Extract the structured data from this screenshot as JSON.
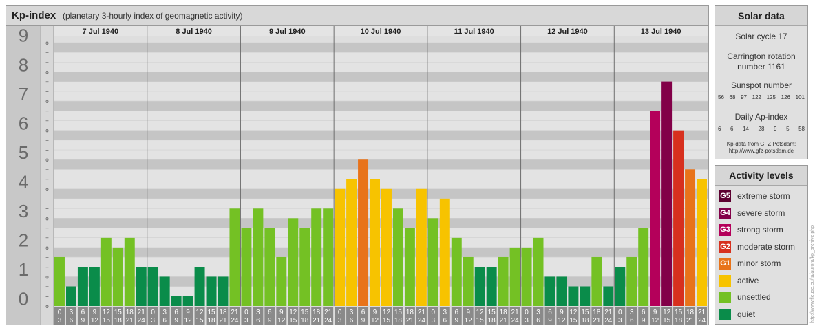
{
  "header": {
    "title": "Kp-index",
    "subtitle": "(planetary 3-hourly index of geomagnetic activity)"
  },
  "chart_data": {
    "type": "bar",
    "title": "Kp-index",
    "subtitle": "(planetary 3-hourly index of geomagnetic activity)",
    "ylim": [
      0,
      9
    ],
    "y_ticks": [
      "0",
      "1",
      "2",
      "3",
      "4",
      "5",
      "6",
      "7",
      "8",
      "9"
    ],
    "y_minor_ticks": [
      "o",
      "+",
      "−"
    ],
    "days": [
      "7 Jul 1940",
      "8 Jul 1940",
      "9 Jul 1940",
      "10 Jul 1940",
      "11 Jul 1940",
      "12 Jul 1940",
      "13 Jul 1940"
    ],
    "interval_start_hours": [
      "0",
      "3",
      "6",
      "9",
      "12",
      "15",
      "18",
      "21"
    ],
    "interval_end_hours": [
      "3",
      "6",
      "9",
      "12",
      "15",
      "18",
      "21",
      "24"
    ],
    "values": [
      [
        1.67,
        0.67,
        1.33,
        1.33,
        2.33,
        2.0,
        2.33,
        1.33
      ],
      [
        1.33,
        1.0,
        0.33,
        0.33,
        1.33,
        1.0,
        1.0,
        3.33
      ],
      [
        2.67,
        3.33,
        2.67,
        1.67,
        3.0,
        2.67,
        3.33,
        3.33
      ],
      [
        4.0,
        4.33,
        5.0,
        4.33,
        4.0,
        3.33,
        2.67,
        4.0
      ],
      [
        3.0,
        3.67,
        2.33,
        1.67,
        1.33,
        1.33,
        1.67,
        2.0
      ],
      [
        2.0,
        2.33,
        1.0,
        1.0,
        0.67,
        0.67,
        1.67,
        0.67
      ],
      [
        1.33,
        1.67,
        2.67,
        6.67,
        7.67,
        6.0,
        4.67,
        4.33
      ]
    ],
    "grid": true
  },
  "solar_data": {
    "title": "Solar data",
    "cycle": "Solar cycle 17",
    "carrington_line1": "Carrington rotation",
    "carrington_line2": "number 1161",
    "sunspot_title": "Sunspot number",
    "sunspot_numbers": [
      "56",
      "68",
      "97",
      "122",
      "125",
      "126",
      "101"
    ],
    "ap_title": "Daily Ap-index",
    "ap_values": [
      "6",
      "6",
      "14",
      "28",
      "9",
      "5",
      "58"
    ],
    "credit_line1": "Kp-data from GFZ Potsdam:",
    "credit_line2": "http://www.gfz-potsdam.de"
  },
  "activity_levels": {
    "title": "Activity levels",
    "items": [
      {
        "badge": "G5",
        "label": "extreme storm",
        "color": "#5c0030"
      },
      {
        "badge": "G4",
        "label": "severe storm",
        "color": "#820048"
      },
      {
        "badge": "G3",
        "label": "strong storm",
        "color": "#b4005a"
      },
      {
        "badge": "G2",
        "label": "moderate storm",
        "color": "#d7301e"
      },
      {
        "badge": "G1",
        "label": "minor storm",
        "color": "#e8731a"
      },
      {
        "badge": "",
        "label": "active",
        "color": "#f7c300"
      },
      {
        "badge": "",
        "label": "unsettled",
        "color": "#74c124"
      },
      {
        "badge": "",
        "label": "quiet",
        "color": "#0a8c4a"
      }
    ]
  },
  "watermark": "http://www.fleuse.eu/ta/aurora/kp_archive.php"
}
